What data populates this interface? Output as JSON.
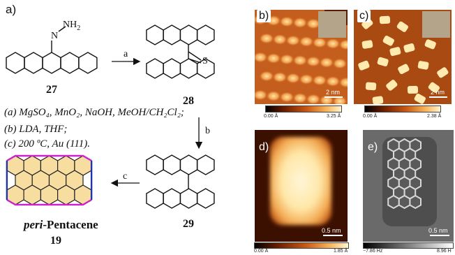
{
  "figure_label": "a)",
  "nh2_label": "NH",
  "nh2_sub": "2",
  "n_label": "N",
  "s_label": "S",
  "arrow_a": "a",
  "arrow_b": "b",
  "arrow_c": "c",
  "compounds": {
    "c27": "27",
    "c28": "28",
    "c29": "29",
    "c19": "19"
  },
  "product_name_italic": "peri",
  "product_name_rest": "-Pentacene",
  "conditions": [
    "(a) MgSO₄, MnO₂, NaOH, MeOH/CH₂Cl₂;",
    "(b) LDA, THF;",
    "(c) 200 ºC, Au (111)."
  ],
  "panels": {
    "b": {
      "label": "b)",
      "scale": "2 nm",
      "cmin": "0.00 Å",
      "cmax": "3.25 Å"
    },
    "c": {
      "label": "c)",
      "scale": "2 nm",
      "cmin": "0.00 Å",
      "cmax": "2.38 Å"
    },
    "d": {
      "label": "d)",
      "scale": "0.5 nm",
      "cmin": "0.00 Å",
      "cmax": "1.85 Å"
    },
    "e": {
      "label": "e)",
      "scale": "0.5 nm",
      "cmin": "−7.86 Hz",
      "cmax": "8.96 H"
    }
  },
  "colors": {
    "stm_dark": "#3a0f00",
    "stm_mid": "#c25a1a",
    "stm_bright": "#ffe7a8",
    "peri_fill": "#f7dea0",
    "edge_magenta": "#cc22cc",
    "edge_blue": "#2233aa"
  }
}
